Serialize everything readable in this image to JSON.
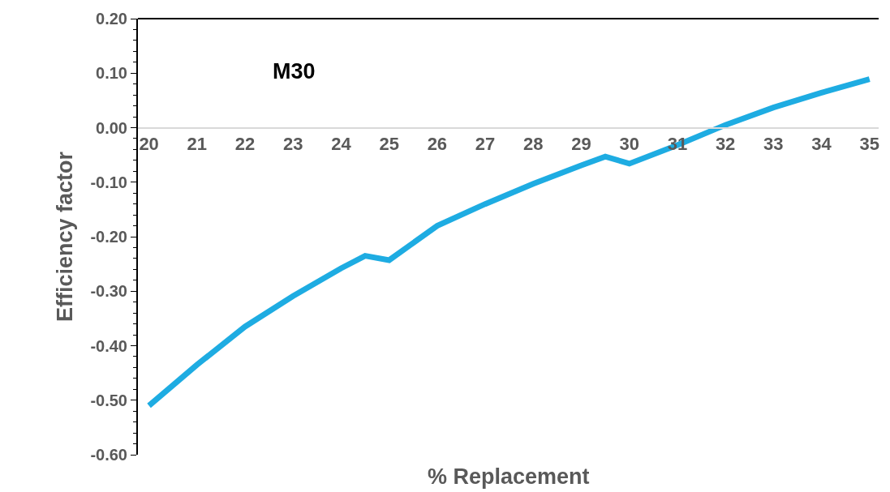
{
  "chart_data": {
    "type": "line",
    "xlabel": "% Replacement",
    "ylabel": "Efficiency factor",
    "annotations": [
      "M30"
    ],
    "x": [
      20,
      21,
      22,
      23,
      24,
      24.5,
      25,
      26,
      27,
      28,
      29,
      29.5,
      30,
      31,
      32,
      33,
      34,
      35
    ],
    "series": [
      {
        "color": "#1eace2",
        "values": [
          -0.51,
          -0.435,
          -0.365,
          -0.309,
          -0.258,
          -0.235,
          -0.243,
          -0.18,
          -0.14,
          -0.103,
          -0.069,
          -0.053,
          -0.066,
          -0.032,
          0.005,
          0.037,
          0.064,
          0.089
        ]
      }
    ],
    "xlim": [
      19.77,
      35.19
    ],
    "xticks": [
      20,
      21,
      22,
      23,
      24,
      25,
      26,
      27,
      28,
      29,
      30,
      31,
      32,
      33,
      34,
      35
    ],
    "ylim": [
      -0.6,
      0.2
    ],
    "yticks": [
      {
        "value": -0.6,
        "label": "-0.60"
      },
      {
        "value": -0.5,
        "label": "-0.50"
      },
      {
        "value": -0.4,
        "label": "-0.40"
      },
      {
        "value": -0.3,
        "label": "-0.30"
      },
      {
        "value": -0.2,
        "label": "-0.20"
      },
      {
        "value": -0.1,
        "label": "-0.10"
      },
      {
        "value": 0,
        "label": "0.00"
      },
      {
        "value": 0.1,
        "label": "0.10"
      },
      {
        "value": 0.2,
        "label": "0.20"
      }
    ],
    "marker": "none",
    "line_style": "solid"
  }
}
